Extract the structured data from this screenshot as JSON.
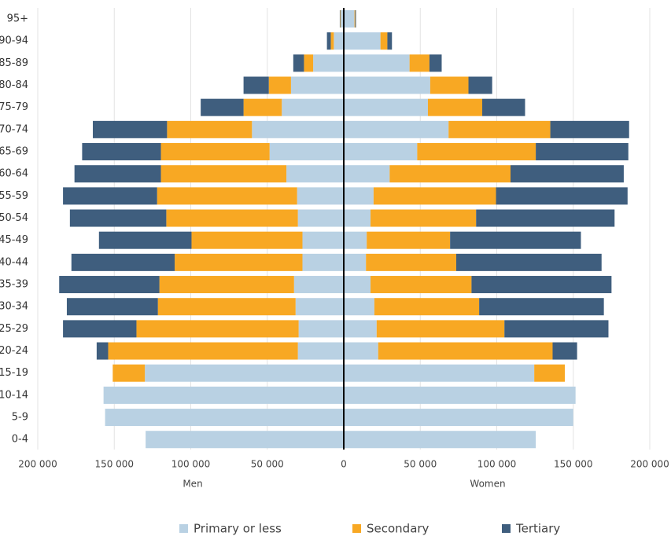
{
  "chart_data": {
    "type": "bar",
    "categories": [
      "95+",
      "90-94",
      "85-89",
      "80-84",
      "75-79",
      "70-74",
      "65-69",
      "60-64",
      "55-59",
      "50-54",
      "45-49",
      "40-44",
      "35-39",
      "30-34",
      "25-29",
      "20-24",
      "15-19",
      "10-14",
      "5-9",
      "0-4"
    ],
    "men_label": "Men",
    "women_label": "Women",
    "series": [
      {
        "name": "Primary or less",
        "color": "#b9d1e3",
        "men": [
          -2000,
          -6500,
          -20000,
          -34500,
          -40500,
          -60000,
          -48500,
          -37500,
          -30500,
          -30000,
          -27000,
          -27000,
          -32500,
          -31500,
          -29500,
          -30000,
          -130000,
          -157000,
          -156000,
          -129500
        ],
        "women": [
          7000,
          24000,
          43000,
          56500,
          55000,
          68500,
          48000,
          30000,
          19500,
          17500,
          15000,
          14500,
          17500,
          20000,
          21500,
          22500,
          124500,
          151500,
          150000,
          125500
        ]
      },
      {
        "name": "Secondary",
        "color": "#f8a823",
        "men": [
          -300,
          -2000,
          -6000,
          -14500,
          -25000,
          -55500,
          -71000,
          -82000,
          -91500,
          -86000,
          -72500,
          -83500,
          -88000,
          -90000,
          -106000,
          -124000,
          -21000,
          0,
          0,
          0
        ],
        "women": [
          500,
          4500,
          13000,
          25000,
          35500,
          66500,
          77500,
          79000,
          80000,
          69000,
          54500,
          59000,
          66000,
          68500,
          83500,
          114000,
          20000,
          0,
          0,
          0
        ]
      },
      {
        "name": "Tertiary",
        "color": "#3f5e7e",
        "men": [
          -300,
          -2500,
          -7000,
          -16500,
          -28000,
          -48500,
          -51500,
          -56500,
          -61500,
          -63000,
          -60500,
          -67500,
          -65500,
          -59500,
          -48000,
          -7500,
          0,
          0,
          0,
          0
        ],
        "women": [
          500,
          3000,
          8000,
          15500,
          28000,
          51500,
          60500,
          74000,
          86000,
          90500,
          85500,
          95000,
          91500,
          81500,
          68000,
          16000,
          0,
          0,
          0,
          0
        ]
      }
    ],
    "xlim": [
      -200000,
      200000
    ],
    "xticks": [
      {
        "value": -200000,
        "label": "200 000"
      },
      {
        "value": -150000,
        "label": "150 000"
      },
      {
        "value": -100000,
        "label": "100 000"
      },
      {
        "value": -50000,
        "label": "50 000"
      },
      0,
      {
        "value": 50000,
        "label": "50 000"
      },
      {
        "value": 100000,
        "label": "100 000"
      },
      {
        "value": 150000,
        "label": "150 000"
      },
      {
        "value": 200000,
        "label": "200 000"
      }
    ],
    "grid": true
  }
}
